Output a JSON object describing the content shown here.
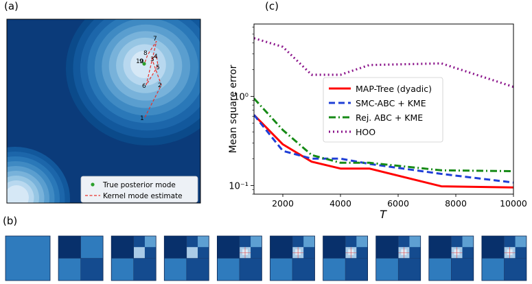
{
  "panel_labels": {
    "a": "(a)",
    "b": "(b)",
    "c": "(c)"
  },
  "panel_a": {
    "legend": {
      "true_mode": "True posterior mode",
      "kernel_estimate": "Kernel mode estimate",
      "true_mode_color": "#2ca02c",
      "estimate_color": "#e8302a",
      "placement": "lower-right"
    },
    "path_labels": [
      "1",
      "2",
      "3",
      "4",
      "5",
      "6",
      "7",
      "8",
      "9",
      "10"
    ],
    "colormap": [
      "#08306b",
      "#0b4a8a",
      "#12589c",
      "#1c66aa",
      "#2a78b8",
      "#3f8ac3",
      "#5a9ecf",
      "#78b2da",
      "#97c6e4",
      "#b8d8ef",
      "#d6e8f6"
    ]
  },
  "panel_b": {
    "tile_count": 10,
    "colors": {
      "dark": "#08306b",
      "mid": "#144b8f",
      "light": "#2f7bbd",
      "lighter": "#5d9fd2",
      "pale": "#aacbe7",
      "line": "#e04040"
    }
  },
  "chart_data": {
    "type": "line",
    "title": "",
    "xlabel": "T",
    "ylabel": "Mean square error",
    "xlim": [
      1000,
      10000
    ],
    "ylim_log": [
      0.08,
      6.5
    ],
    "yscale": "log",
    "x_ticks": [
      2000,
      4000,
      6000,
      8000,
      10000
    ],
    "y_ticks": [
      {
        "value": 0.1,
        "label": "10⁻¹"
      },
      {
        "value": 1,
        "label": "10⁰"
      }
    ],
    "legend_placement": "center-right",
    "series": [
      {
        "name": "MAP-Tree (dyadic)",
        "color": "#ff0000",
        "dash": "",
        "width": 3,
        "x": [
          1000,
          2000,
          3000,
          4000,
          5000,
          7500,
          10000
        ],
        "values": [
          0.62,
          0.29,
          0.185,
          0.155,
          0.155,
          0.098,
          0.095
        ]
      },
      {
        "name": "SMC-ABC + KME",
        "color": "#1f3fd6",
        "dash": "9,5",
        "width": 3,
        "x": [
          1000,
          2000,
          3000,
          4000,
          5000,
          7500,
          10000
        ],
        "values": [
          0.62,
          0.245,
          0.2,
          0.2,
          0.175,
          0.135,
          0.108
        ]
      },
      {
        "name": "Rej. ABC + KME",
        "color": "#168a16",
        "dash": "10,4,2,4",
        "width": 3,
        "x": [
          1000,
          2000,
          3000,
          4000,
          5000,
          7500,
          10000
        ],
        "values": [
          0.95,
          0.42,
          0.22,
          0.18,
          0.18,
          0.148,
          0.145
        ]
      },
      {
        "name": "HOO",
        "color": "#8b158b",
        "dash": "2,4",
        "width": 3.2,
        "x": [
          1000,
          2000,
          3000,
          4000,
          5000,
          7500,
          10000
        ],
        "values": [
          4.5,
          3.6,
          1.75,
          1.75,
          2.25,
          2.35,
          1.28
        ]
      }
    ]
  }
}
